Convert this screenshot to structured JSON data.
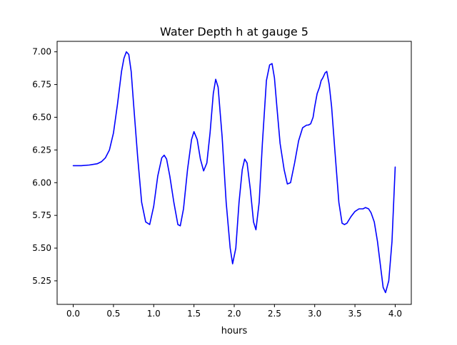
{
  "chart_data": {
    "type": "line",
    "title": "Water Depth h at gauge 5",
    "xlabel": "hours",
    "ylabel": "",
    "xlim": [
      -0.2,
      4.2
    ],
    "ylim": [
      5.07,
      7.08
    ],
    "x_ticks": [
      0.0,
      0.5,
      1.0,
      1.5,
      2.0,
      2.5,
      3.0,
      3.5,
      4.0
    ],
    "x_tick_labels": [
      "0.0",
      "0.5",
      "1.0",
      "1.5",
      "2.0",
      "2.5",
      "3.0",
      "3.5",
      "4.0"
    ],
    "y_ticks": [
      5.25,
      5.5,
      5.75,
      6.0,
      6.25,
      6.5,
      6.75,
      7.0
    ],
    "y_tick_labels": [
      "5.25",
      "5.50",
      "5.75",
      "6.00",
      "6.25",
      "6.50",
      "6.75",
      "7.00"
    ],
    "grid": false,
    "legend": "none",
    "colors": {
      "line": "#0000ff",
      "axes": "#000000",
      "background": "#ffffff"
    },
    "series": [
      {
        "x": [
          0.0,
          0.1,
          0.2,
          0.3,
          0.35,
          0.4,
          0.45,
          0.5,
          0.55,
          0.6,
          0.63,
          0.66,
          0.69,
          0.72,
          0.75,
          0.8,
          0.85,
          0.9,
          0.95,
          1.0,
          1.05,
          1.1,
          1.13,
          1.16,
          1.2,
          1.25,
          1.3,
          1.33,
          1.37,
          1.42,
          1.47,
          1.5,
          1.54,
          1.58,
          1.62,
          1.66,
          1.7,
          1.74,
          1.77,
          1.8,
          1.85,
          1.9,
          1.95,
          1.98,
          2.02,
          2.06,
          2.1,
          2.13,
          2.16,
          2.2,
          2.24,
          2.27,
          2.31,
          2.35,
          2.4,
          2.44,
          2.47,
          2.5,
          2.53,
          2.57,
          2.62,
          2.66,
          2.7,
          2.75,
          2.8,
          2.85,
          2.9,
          2.92,
          2.95,
          2.98,
          3.0,
          3.03,
          3.06,
          3.08,
          3.1,
          3.13,
          3.15,
          3.18,
          3.21,
          3.25,
          3.3,
          3.34,
          3.37,
          3.4,
          3.45,
          3.5,
          3.55,
          3.6,
          3.63,
          3.67,
          3.7,
          3.74,
          3.78,
          3.82,
          3.85,
          3.88,
          3.92,
          3.96,
          4.0
        ],
        "values": [
          6.13,
          6.13,
          6.135,
          6.145,
          6.16,
          6.19,
          6.25,
          6.38,
          6.6,
          6.85,
          6.95,
          7.0,
          6.98,
          6.85,
          6.6,
          6.2,
          5.85,
          5.7,
          5.68,
          5.82,
          6.05,
          6.19,
          6.21,
          6.18,
          6.05,
          5.85,
          5.68,
          5.67,
          5.8,
          6.1,
          6.33,
          6.39,
          6.33,
          6.18,
          6.09,
          6.15,
          6.38,
          6.68,
          6.79,
          6.73,
          6.35,
          5.85,
          5.5,
          5.38,
          5.5,
          5.85,
          6.1,
          6.18,
          6.15,
          5.95,
          5.7,
          5.64,
          5.85,
          6.3,
          6.78,
          6.9,
          6.91,
          6.8,
          6.58,
          6.3,
          6.1,
          5.99,
          6.0,
          6.15,
          6.32,
          6.42,
          6.44,
          6.44,
          6.45,
          6.5,
          6.58,
          6.68,
          6.73,
          6.78,
          6.8,
          6.84,
          6.85,
          6.75,
          6.58,
          6.25,
          5.85,
          5.69,
          5.68,
          5.69,
          5.74,
          5.78,
          5.8,
          5.8,
          5.81,
          5.8,
          5.77,
          5.7,
          5.55,
          5.35,
          5.2,
          5.16,
          5.25,
          5.55,
          6.12
        ]
      }
    ]
  }
}
